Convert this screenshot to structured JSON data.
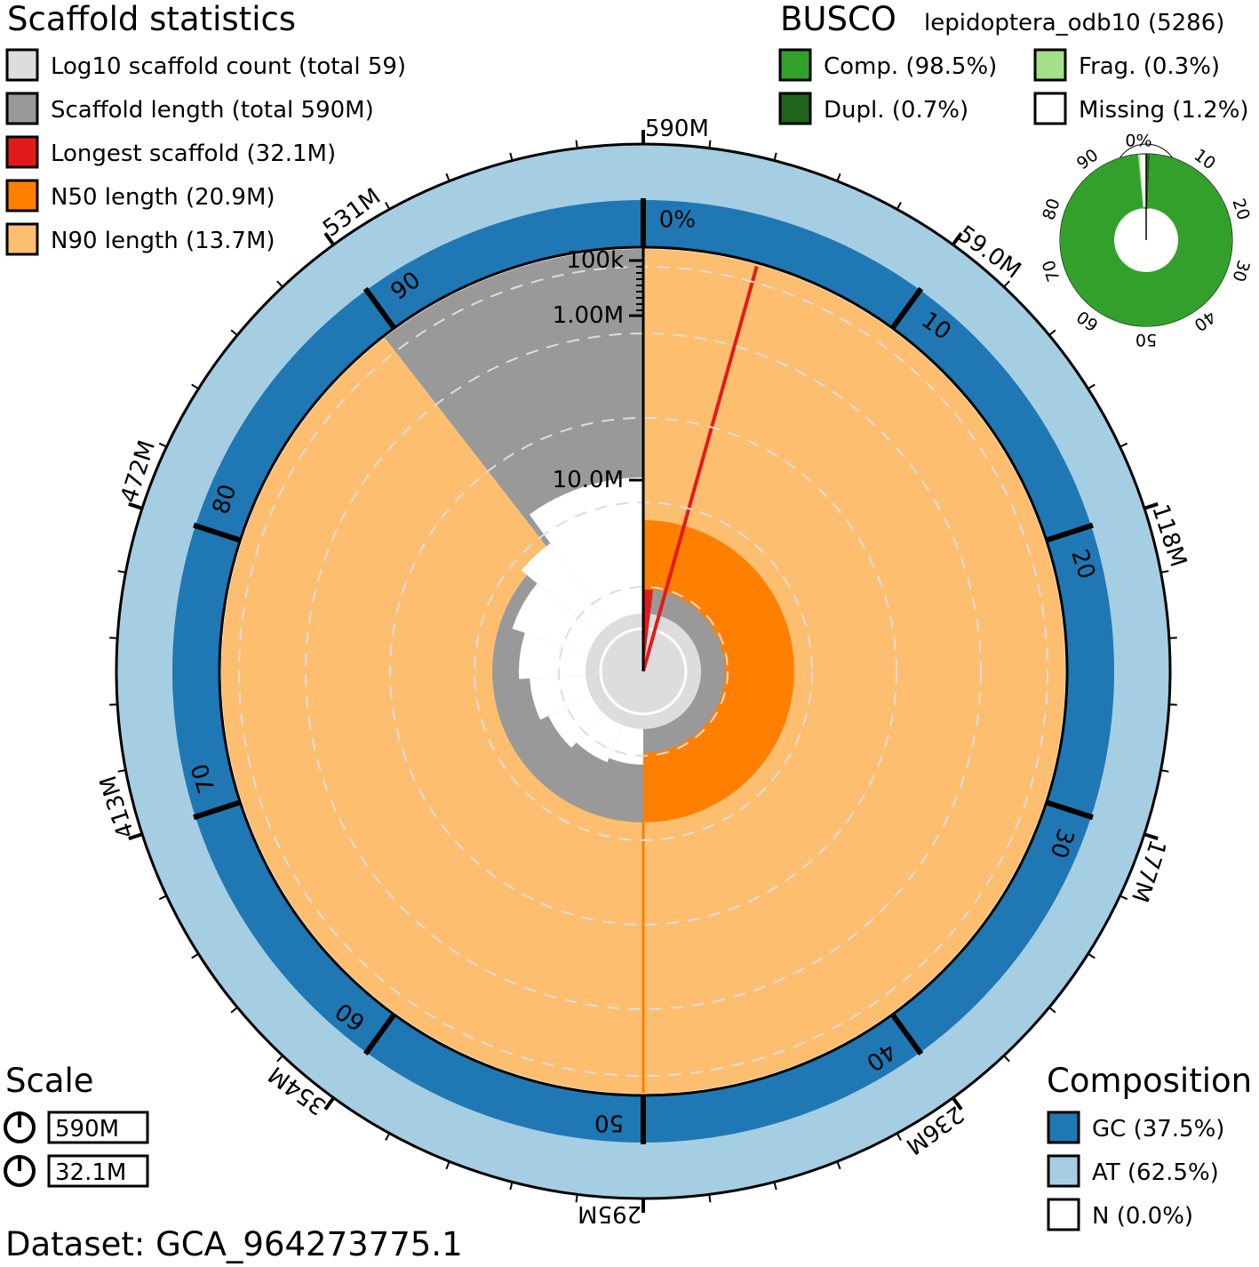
{
  "chart_data": {
    "type": "snail",
    "dataset_label": "Dataset: GCA_964273775.1",
    "scaffold_statistics": {
      "title": "Scaffold statistics",
      "legend": [
        {
          "key": "count",
          "label": "Log10 scaffold count (total 59)",
          "color": "#dddddd"
        },
        {
          "key": "length",
          "label": "Scaffold length (total 590M)",
          "color": "#999999"
        },
        {
          "key": "longest",
          "label": "Longest scaffold (32.1M)",
          "color": "#e31a1c"
        },
        {
          "key": "n50",
          "label": "N50 length (20.9M)",
          "color": "#ff7f00"
        },
        {
          "key": "n90",
          "label": "N90 length (13.7M)",
          "color": "#fdbf6f"
        }
      ],
      "total_length": 590,
      "longest_scaffold": 32.1,
      "n50": 20.9,
      "n90": 13.7,
      "scaffold_count": 59,
      "n90_percent": 89.5,
      "longest_percent": 5.44,
      "radial_ticks": [
        "100k",
        "1.00M",
        "10.0M"
      ],
      "outer_length_ticks": [
        "590M",
        "59.0M",
        "118M",
        "177M",
        "236M",
        "295M",
        "354M",
        "413M",
        "472M",
        "531M"
      ],
      "percent_ticks": [
        "0%",
        "10",
        "20",
        "30",
        "40",
        "50",
        "60",
        "70",
        "80",
        "90"
      ]
    },
    "busco": {
      "title": "BUSCO",
      "lineage": "lepidoptera_odb10 (5286)",
      "legend": [
        {
          "key": "comp",
          "label": "Comp. (98.5%)",
          "color": "#33a02c"
        },
        {
          "key": "frag",
          "label": "Frag. (0.3%)",
          "color": "#a3e089"
        },
        {
          "key": "dupl",
          "label": "Dupl. (0.7%)",
          "color": "#20641c"
        },
        {
          "key": "missing",
          "label": "Missing (1.2%)",
          "color": "#ffffff"
        }
      ],
      "values": {
        "complete": 98.5,
        "duplicated": 0.7,
        "fragmented": 0.3,
        "missing": 1.2
      },
      "ticks": [
        "0%",
        "10",
        "20",
        "30",
        "40",
        "50",
        "60",
        "70",
        "80",
        "90"
      ]
    },
    "composition": {
      "title": "Composition",
      "legend": [
        {
          "key": "gc",
          "label": "GC (37.5%)",
          "color": "#1f78b4"
        },
        {
          "key": "at",
          "label": "AT (62.5%)",
          "color": "#a6cee3"
        },
        {
          "key": "n",
          "label": "N (0.0%)",
          "color": "#ffffff"
        }
      ],
      "gc": 37.5,
      "at": 62.5,
      "n": 0.0
    },
    "scale": {
      "title": "Scale",
      "items": [
        "590M",
        "32.1M"
      ]
    }
  }
}
